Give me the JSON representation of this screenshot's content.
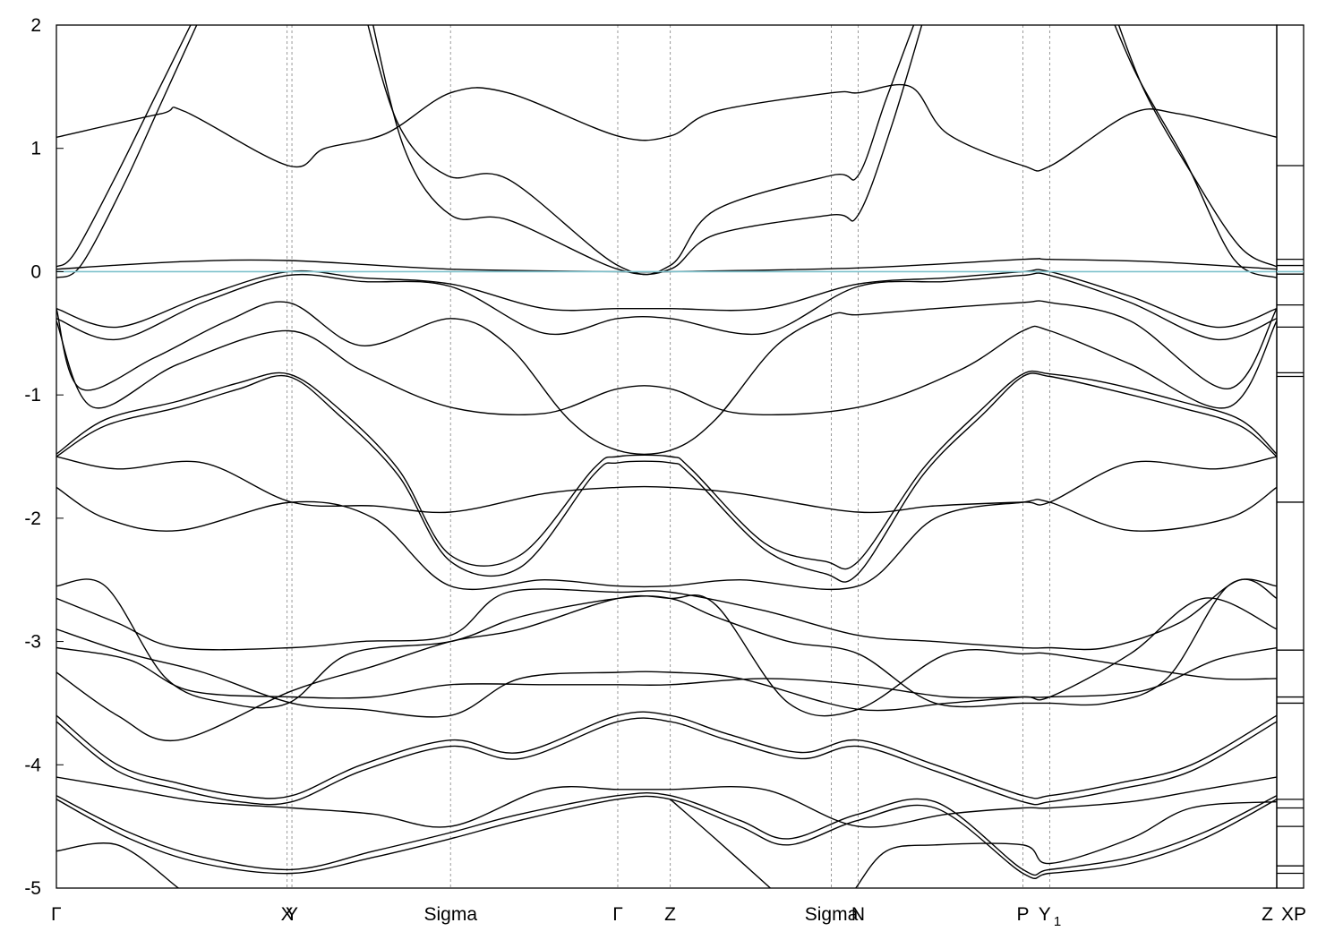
{
  "chart_data": {
    "type": "line",
    "title": "",
    "xlabel": "",
    "ylabel": "",
    "ylim": [
      -5,
      2
    ],
    "yticks": [
      2,
      1,
      0,
      -1,
      -2,
      -3,
      -4,
      -5
    ],
    "ytick_labels": [
      "2",
      "1",
      "0",
      "-1",
      "-2",
      "-3",
      "-4",
      "-5"
    ],
    "x_range": [
      0,
      100
    ],
    "kpoints": [
      {
        "label": "Γ",
        "sub": "",
        "x": 0.0
      },
      {
        "label": "X",
        "sub": "",
        "x": 18.9
      },
      {
        "label": "Y",
        "sub": "",
        "x": 19.3
      },
      {
        "label": "Sigma",
        "sub": "",
        "x": 32.3
      },
      {
        "label": "Γ",
        "sub": "",
        "x": 46.0
      },
      {
        "label": "Z",
        "sub": "",
        "x": 50.3
      },
      {
        "label": "Sigma",
        "sub": "",
        "x": 63.5
      },
      {
        "label": "N",
        "sub": "",
        "x": 65.7
      },
      {
        "label": "P",
        "sub": "",
        "x": 79.2
      },
      {
        "label": "Y",
        "sub": "1",
        "x": 81.4
      },
      {
        "label": "Z",
        "sub": "",
        "x": 100.0
      }
    ],
    "fermi_level": 0.0,
    "fermi_color": "#7ec1cc",
    "line_color": "#000000",
    "grid": false,
    "legend": "none",
    "series": [
      {
        "x": [
          0,
          8.5,
          10.5,
          19,
          22,
          27,
          32.3,
          37,
          46,
          50.3,
          54,
          63.5,
          65.7,
          70,
          73,
          79.2,
          81.5,
          88,
          92,
          100
        ],
        "y": [
          1.09,
          1.28,
          1.3,
          0.86,
          1.0,
          1.12,
          1.45,
          1.45,
          1.1,
          1.1,
          1.3,
          1.45,
          1.45,
          1.5,
          1.12,
          0.86,
          0.86,
          1.28,
          1.28,
          1.09
        ]
      },
      {
        "x": [
          0,
          1.5,
          5,
          8,
          11,
          13
        ],
        "y": [
          0.04,
          0.15,
          0.8,
          1.4,
          2.0,
          2.4
        ]
      },
      {
        "x": [
          0,
          2,
          5.5,
          8.5,
          11.5,
          13
        ],
        "y": [
          -0.05,
          0.05,
          0.7,
          1.35,
          2.0,
          2.3
        ]
      },
      {
        "x": [
          25,
          28,
          32,
          37,
          46,
          50.3,
          54,
          63.5,
          65.7,
          68,
          71
        ],
        "y": [
          2.2,
          1.2,
          0.78,
          0.75,
          0.05,
          0.05,
          0.5,
          0.78,
          0.78,
          1.4,
          2.2
        ]
      },
      {
        "x": [
          25.5,
          28.5,
          32.3,
          37,
          46,
          50.3,
          54,
          63.5,
          65.7,
          68.5,
          71.5
        ],
        "y": [
          2.2,
          1.0,
          0.46,
          0.42,
          0.02,
          0.02,
          0.3,
          0.46,
          0.46,
          1.2,
          2.2
        ]
      },
      {
        "x": [
          86,
          89,
          93,
          97,
          100
        ],
        "y": [
          2.3,
          1.5,
          0.8,
          0.2,
          0.04
        ]
      },
      {
        "x": [
          85.5,
          88.5,
          92.5,
          96.5,
          100
        ],
        "y": [
          2.3,
          1.6,
          0.9,
          0.1,
          -0.05
        ]
      },
      {
        "x": [
          0,
          10,
          19,
          32.3,
          46,
          50.3,
          65.7,
          79.2,
          81.4,
          90,
          100
        ],
        "y": [
          0.02,
          0.08,
          0.09,
          0.02,
          0.0,
          0.0,
          0.03,
          0.1,
          0.1,
          0.08,
          0.02
        ]
      },
      {
        "x": [
          0,
          5,
          12,
          19,
          25,
          32.3,
          40,
          46,
          50.3,
          58,
          65.7,
          73,
          79.2,
          81.4,
          88,
          95,
          100
        ],
        "y": [
          -0.3,
          -0.45,
          -0.2,
          0.0,
          -0.05,
          -0.1,
          -0.3,
          -0.3,
          -0.3,
          -0.3,
          -0.1,
          -0.05,
          0.0,
          0.0,
          -0.2,
          -0.45,
          -0.3
        ]
      },
      {
        "x": [
          0,
          5,
          12,
          19,
          25,
          32.3,
          40,
          46,
          50.3,
          58,
          65.7,
          73,
          79.2,
          81.4,
          88,
          95,
          100
        ],
        "y": [
          -0.38,
          -0.55,
          -0.25,
          -0.03,
          -0.08,
          -0.12,
          -0.5,
          -0.38,
          -0.38,
          -0.5,
          -0.12,
          -0.08,
          -0.03,
          -0.03,
          -0.25,
          -0.55,
          -0.38
        ]
      },
      {
        "x": [
          0,
          2,
          8,
          14,
          19,
          25,
          32.3,
          37,
          42,
          46,
          50.3,
          54,
          59,
          63.5,
          65.7,
          72,
          79.2,
          81.4,
          88,
          96,
          100
        ],
        "y": [
          -0.3,
          -0.95,
          -0.7,
          -0.4,
          -0.25,
          -0.6,
          -0.38,
          -0.6,
          -1.2,
          -1.45,
          -1.45,
          -1.2,
          -0.6,
          -0.35,
          -0.35,
          -0.3,
          -0.25,
          -0.25,
          -0.4,
          -0.95,
          -0.3
        ]
      },
      {
        "x": [
          0,
          3,
          10,
          19,
          25,
          32.3,
          40,
          46,
          50.3,
          56,
          65.7,
          74,
          79.2,
          81.4,
          88,
          96,
          100
        ],
        "y": [
          -0.4,
          -1.1,
          -0.75,
          -0.48,
          -0.8,
          -1.1,
          -1.15,
          -0.95,
          -0.95,
          -1.15,
          -1.1,
          -0.8,
          -0.48,
          -0.48,
          -0.75,
          -1.1,
          -0.4
        ]
      },
      {
        "x": [
          0,
          4,
          10,
          15,
          19,
          23,
          28,
          32.3,
          38,
          44,
          46,
          50.3,
          52,
          58,
          63,
          65.7,
          71,
          76,
          79.2,
          81.4,
          86,
          92,
          97,
          100
        ],
        "y": [
          -1.48,
          -1.2,
          -1.05,
          -0.9,
          -0.83,
          -1.1,
          -1.6,
          -2.3,
          -2.3,
          -1.6,
          -1.5,
          -1.5,
          -1.6,
          -2.2,
          -2.35,
          -2.35,
          -1.6,
          -1.1,
          -0.83,
          -0.83,
          -0.9,
          -1.05,
          -1.2,
          -1.48
        ]
      },
      {
        "x": [
          0,
          4,
          10,
          15,
          19,
          23,
          28,
          32.3,
          38,
          44,
          46,
          50.3,
          52,
          58,
          63,
          65.7,
          71,
          76,
          79.2,
          81.4,
          86,
          92,
          97,
          100
        ],
        "y": [
          -1.5,
          -1.25,
          -1.1,
          -0.95,
          -0.85,
          -1.15,
          -1.65,
          -2.35,
          -2.4,
          -1.65,
          -1.55,
          -1.55,
          -1.65,
          -2.25,
          -2.45,
          -2.45,
          -1.65,
          -1.15,
          -0.85,
          -0.85,
          -0.95,
          -1.1,
          -1.25,
          -1.5
        ]
      },
      {
        "x": [
          0,
          5,
          12,
          19.3,
          26,
          32.3,
          40,
          46,
          50.3,
          56,
          65.7,
          72,
          79.2,
          81.4,
          88,
          95,
          100
        ],
        "y": [
          -1.5,
          -1.6,
          -1.55,
          -1.87,
          -1.9,
          -1.95,
          -1.8,
          -1.75,
          -1.75,
          -1.8,
          -1.95,
          -1.9,
          -1.87,
          -1.87,
          -1.55,
          -1.6,
          -1.5
        ]
      },
      {
        "x": [
          0,
          4,
          10,
          19.3,
          26,
          32.3,
          40,
          46,
          50.3,
          56,
          65.7,
          72,
          79.2,
          81.4,
          88,
          96,
          100
        ],
        "y": [
          -1.75,
          -2.0,
          -2.1,
          -1.87,
          -2.0,
          -2.55,
          -2.5,
          -2.55,
          -2.55,
          -2.5,
          -2.55,
          -2.0,
          -1.87,
          -1.87,
          -2.1,
          -2.0,
          -1.75
        ]
      },
      {
        "x": [
          0,
          4,
          9,
          14,
          19,
          24,
          32.3,
          38,
          46,
          50.3,
          54,
          60,
          65.7,
          72,
          79.2,
          81.4,
          86,
          91,
          96,
          100
        ],
        "y": [
          -2.55,
          -2.55,
          -3.3,
          -3.5,
          -3.5,
          -3.1,
          -3.0,
          -2.8,
          -2.65,
          -2.65,
          -2.8,
          -3.0,
          -3.1,
          -3.5,
          -3.5,
          -3.5,
          -3.5,
          -3.3,
          -2.55,
          -2.55
        ]
      },
      {
        "x": [
          0,
          5,
          10,
          19.3,
          25,
          32.3,
          37,
          46,
          50.3,
          58,
          65.7,
          72,
          79.2,
          81.4,
          86,
          92,
          97,
          100
        ],
        "y": [
          -2.65,
          -2.85,
          -3.05,
          -3.05,
          -3.0,
          -2.95,
          -2.6,
          -2.6,
          -2.6,
          -2.75,
          -2.95,
          -3.0,
          -3.05,
          -3.05,
          -3.05,
          -2.85,
          -2.5,
          -2.65
        ]
      },
      {
        "x": [
          0,
          6,
          12,
          19.3,
          25,
          32.3,
          38,
          46,
          50.3,
          56,
          65.7,
          73,
          79.2,
          81.4,
          88,
          94,
          100
        ],
        "y": [
          -2.9,
          -3.1,
          -3.25,
          -3.5,
          -3.55,
          -3.6,
          -3.3,
          -3.25,
          -3.25,
          -3.3,
          -3.55,
          -3.5,
          -3.45,
          -3.45,
          -3.1,
          -2.65,
          -2.9
        ]
      },
      {
        "x": [
          0,
          6,
          11,
          19.3,
          26,
          32.3,
          40,
          46,
          50.3,
          58,
          65.7,
          73,
          79.2,
          81.4,
          89,
          95,
          100
        ],
        "y": [
          -3.05,
          -3.15,
          -3.4,
          -3.45,
          -3.45,
          -3.35,
          -3.35,
          -3.35,
          -3.35,
          -3.3,
          -3.35,
          -3.45,
          -3.45,
          -3.45,
          -3.4,
          -3.15,
          -3.05
        ]
      },
      {
        "x": [
          0,
          5,
          10,
          19.3,
          26,
          32.3,
          38,
          46,
          50.3,
          54,
          60,
          65.7,
          73,
          79.2,
          81.4,
          88,
          95,
          100
        ],
        "y": [
          -3.25,
          -3.6,
          -3.8,
          -3.4,
          -3.2,
          -3.0,
          -2.9,
          -2.65,
          -2.65,
          -2.7,
          -3.5,
          -3.55,
          -3.1,
          -3.1,
          -3.1,
          -3.2,
          -3.3,
          -3.3
        ]
      },
      {
        "x": [
          0,
          5,
          10,
          15,
          19.3,
          25,
          32.3,
          38,
          46,
          50.3,
          55,
          61,
          65.7,
          72,
          79.2,
          81.4,
          87,
          93,
          100
        ],
        "y": [
          -3.6,
          -4.0,
          -4.15,
          -4.25,
          -4.25,
          -4.0,
          -3.8,
          -3.9,
          -3.6,
          -3.6,
          -3.75,
          -3.9,
          -3.8,
          -4.0,
          -4.25,
          -4.25,
          -4.15,
          -4.0,
          -3.6
        ]
      },
      {
        "x": [
          0,
          5,
          10,
          15,
          19.3,
          25,
          32.3,
          38,
          46,
          50.3,
          55,
          61,
          65.7,
          72,
          79.2,
          81.4,
          87,
          93,
          100
        ],
        "y": [
          -3.65,
          -4.05,
          -4.2,
          -4.3,
          -4.3,
          -4.05,
          -3.85,
          -3.95,
          -3.65,
          -3.65,
          -3.8,
          -3.95,
          -3.85,
          -4.05,
          -4.3,
          -4.3,
          -4.2,
          -4.05,
          -3.65
        ]
      },
      {
        "x": [
          0,
          6,
          12,
          19.3,
          26,
          32.3,
          40,
          46,
          50.3,
          58,
          65.7,
          73,
          79.2,
          81.4,
          88,
          94,
          100
        ],
        "y": [
          -4.1,
          -4.2,
          -4.3,
          -4.35,
          -4.4,
          -4.5,
          -4.2,
          -4.2,
          -4.2,
          -4.2,
          -4.5,
          -4.4,
          -4.35,
          -4.35,
          -4.3,
          -4.2,
          -4.1
        ]
      },
      {
        "x": [
          0,
          6,
          12,
          19.3,
          26,
          32.3,
          38,
          46,
          50.3,
          56,
          60,
          65.7,
          72,
          79.2,
          81.4,
          88,
          94,
          100
        ],
        "y": [
          -4.25,
          -4.55,
          -4.75,
          -4.85,
          -4.7,
          -4.55,
          -4.4,
          -4.25,
          -4.25,
          -4.45,
          -4.6,
          -4.4,
          -4.3,
          -4.85,
          -4.85,
          -4.75,
          -4.55,
          -4.25
        ]
      },
      {
        "x": [
          0,
          6,
          12,
          19.3,
          26,
          32.3,
          38,
          46,
          50.3,
          56,
          60,
          65.7,
          72,
          79.2,
          81.4,
          88,
          94,
          100
        ],
        "y": [
          -4.28,
          -4.6,
          -4.8,
          -4.88,
          -4.75,
          -4.6,
          -4.45,
          -4.28,
          -4.28,
          -4.5,
          -4.65,
          -4.45,
          -4.35,
          -4.88,
          -4.88,
          -4.8,
          -4.6,
          -4.28
        ]
      },
      {
        "x": [
          0,
          5,
          10
        ],
        "y": [
          -4.7,
          -4.65,
          -5.0
        ]
      },
      {
        "x": [
          50.3,
          54,
          58.5
        ],
        "y": [
          -4.28,
          -4.6,
          -5.0
        ]
      },
      {
        "x": [
          65.5,
          68,
          72,
          79.2,
          81.4,
          88,
          93,
          100
        ],
        "y": [
          -5.0,
          -4.7,
          -4.65,
          -4.65,
          -4.8,
          -4.6,
          -4.35,
          -4.3
        ]
      }
    ],
    "right_panel": {
      "label": "XP",
      "levels": [
        0.86,
        0.1,
        0.05,
        -0.02,
        -0.27,
        -0.45,
        -0.82,
        -0.85,
        -1.87,
        -3.07,
        -3.45,
        -3.5,
        -4.28,
        -4.35,
        -4.5,
        -4.82,
        -4.88
      ]
    }
  }
}
